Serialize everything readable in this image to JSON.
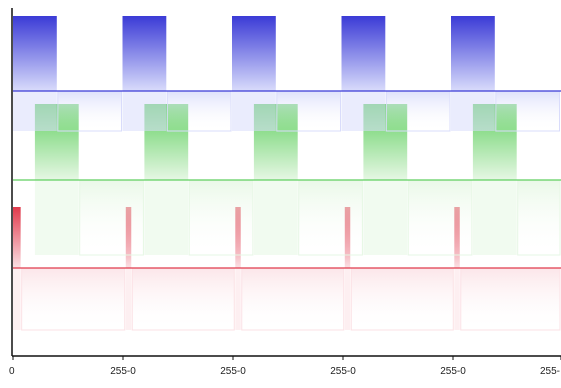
{
  "chart_data": {
    "type": "area",
    "title": "",
    "xlabel": "",
    "ylabel": "",
    "grid": false,
    "legend": "none",
    "x_tick_labels": [
      "0",
      "255-0",
      "255-0",
      "255-0",
      "255-0",
      "255-"
    ],
    "period": 100,
    "xlim": [
      0,
      500
    ],
    "series": [
      {
        "color": "#3b3bd6",
        "fade_color": "#d9dcfb",
        "pulses": [
          {
            "start": 0,
            "end": 40
          },
          {
            "start": 100,
            "end": 140
          },
          {
            "start": 200,
            "end": 240
          },
          {
            "start": 300,
            "end": 340
          },
          {
            "start": 400,
            "end": 440
          }
        ]
      },
      {
        "color": "#5fcf5f",
        "fade_color": "#e6f7e4",
        "pulses": [
          {
            "start": 20,
            "end": 60
          },
          {
            "start": 120,
            "end": 160
          },
          {
            "start": 220,
            "end": 260
          },
          {
            "start": 320,
            "end": 360
          },
          {
            "start": 420,
            "end": 460
          }
        ]
      },
      {
        "color": "#e03a4c",
        "fade_color": "#fbe1e5",
        "pulses": [
          {
            "start": 0,
            "end": 7
          },
          {
            "start": 103,
            "end": 108
          },
          {
            "start": 203,
            "end": 208
          },
          {
            "start": 303,
            "end": 308
          },
          {
            "start": 403,
            "end": 408
          }
        ]
      }
    ]
  }
}
